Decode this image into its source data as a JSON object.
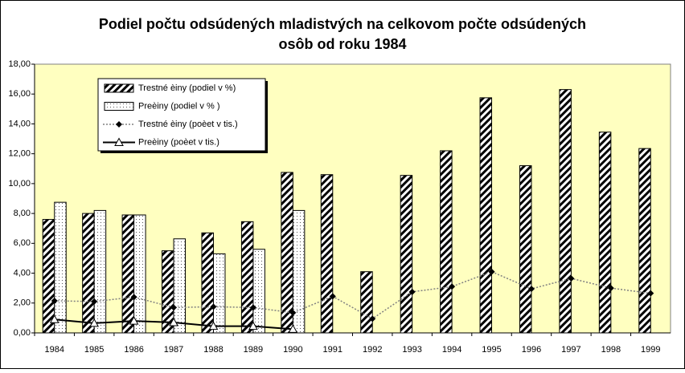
{
  "chart_data": {
    "type": "bar",
    "title": [
      "Podiel počtu odsúdených mladistvých na celkovom počte odsúdených",
      "osôb od roku 1984"
    ],
    "categories": [
      "1984",
      "1985",
      "1986",
      "1987",
      "1988",
      "1989",
      "1990",
      "1991",
      "1992",
      "1993",
      "1994",
      "1995",
      "1996",
      "1997",
      "1998",
      "1999"
    ],
    "series": [
      {
        "name": "Trestné èiny (podiel v %)",
        "type": "bar",
        "fill": "hatch",
        "color": "#000000",
        "values": [
          7.6,
          8.0,
          7.9,
          5.5,
          6.7,
          7.45,
          10.75,
          10.6,
          4.1,
          10.55,
          12.2,
          15.75,
          11.2,
          16.3,
          13.45,
          12.35
        ]
      },
      {
        "name": "Preèiny (podiel v % )",
        "type": "bar",
        "fill": "dots",
        "color": "#000000",
        "values": [
          8.75,
          8.2,
          7.9,
          6.3,
          5.3,
          5.6,
          8.2,
          null,
          null,
          null,
          null,
          null,
          null,
          null,
          null,
          null
        ]
      },
      {
        "name": "Trestné èiny (poèet v tis.)",
        "type": "line",
        "marker": "diamond",
        "dash": "dotted",
        "color": "#808080",
        "values": [
          2.15,
          2.1,
          2.4,
          1.7,
          1.75,
          1.7,
          1.35,
          2.45,
          0.95,
          2.75,
          3.1,
          4.1,
          2.95,
          3.65,
          3.0,
          2.65
        ]
      },
      {
        "name": "Preèiny (poèet v tis.)",
        "type": "line",
        "marker": "triangle",
        "dash": "solid",
        "color": "#000000",
        "values": [
          0.9,
          0.65,
          0.8,
          0.7,
          0.45,
          0.45,
          0.25,
          null,
          null,
          null,
          null,
          null,
          null,
          null,
          null,
          null
        ]
      }
    ],
    "ylim": [
      0,
      18
    ],
    "yticks": [
      {
        "value": 0,
        "label": "0,00"
      },
      {
        "value": 2,
        "label": "2,00"
      },
      {
        "value": 4,
        "label": "4,00"
      },
      {
        "value": 6,
        "label": "6,00"
      },
      {
        "value": 8,
        "label": "8,00"
      },
      {
        "value": 10,
        "label": "10,00"
      },
      {
        "value": 12,
        "label": "12,00"
      },
      {
        "value": 14,
        "label": "14,00"
      },
      {
        "value": 16,
        "label": "16,00"
      },
      {
        "value": 18,
        "label": "18,00"
      }
    ],
    "grid": false,
    "background": "#ffffc0",
    "legend": "upper left"
  }
}
